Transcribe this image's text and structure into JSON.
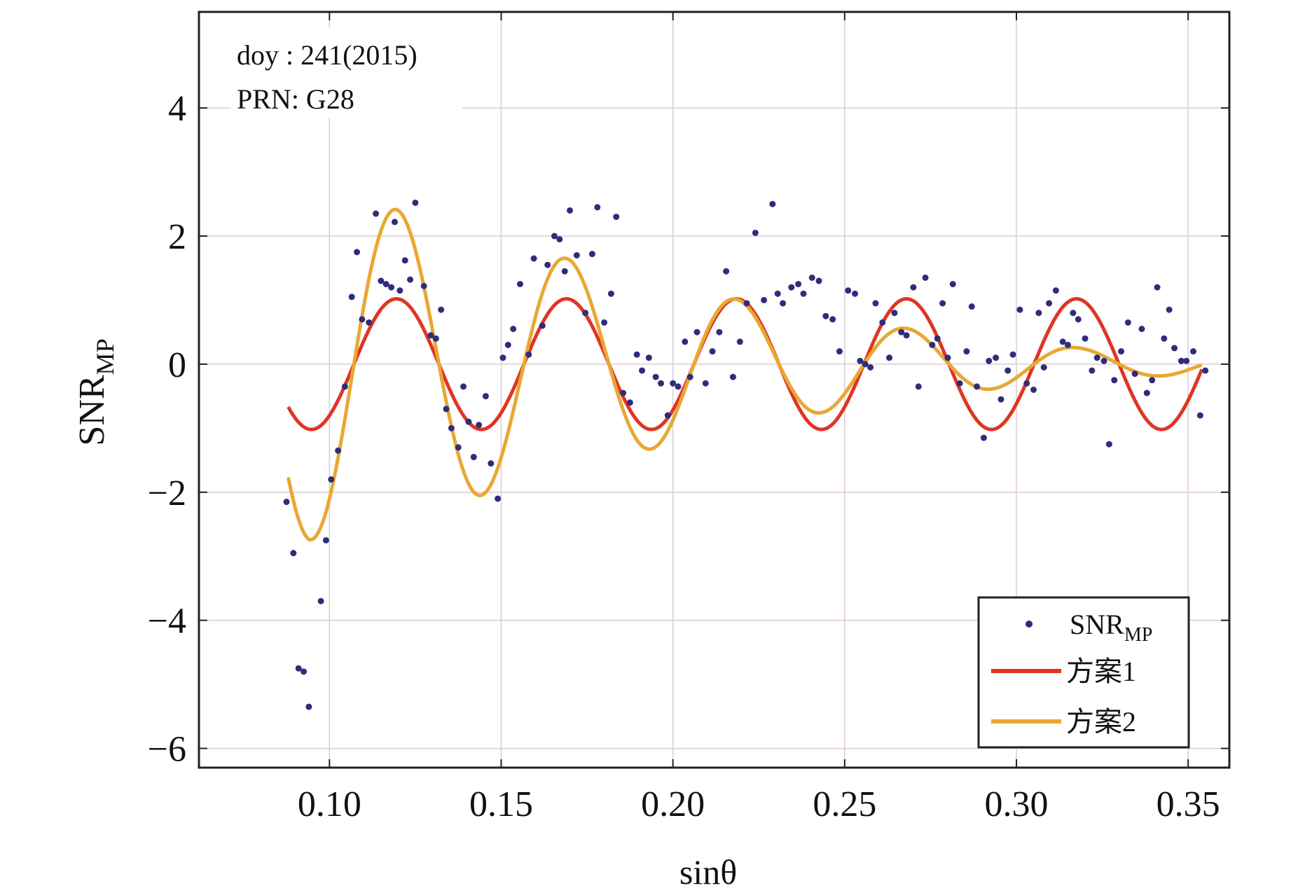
{
  "chart_data": {
    "type": "scatter",
    "title": "",
    "xlabel": "sinθ",
    "ylabel": {
      "main": "SNR",
      "sub": "MP"
    },
    "xlim": [
      0.062,
      0.362
    ],
    "ylim": [
      -6.3,
      5.5
    ],
    "xticks": [
      0.1,
      0.15,
      0.2,
      0.25,
      0.3,
      0.35
    ],
    "xtick_labels": [
      "0.10",
      "0.15",
      "0.20",
      "0.25",
      "0.30",
      "0.35"
    ],
    "yticks": [
      4,
      2,
      0,
      -2,
      -4,
      -6
    ],
    "ytick_labels": [
      "4",
      "2",
      "0",
      "−2",
      "−4",
      "−6"
    ],
    "grid": true,
    "annotations": [
      "doy : 241(2015)",
      "PRN: G28"
    ],
    "legend_position": "bottom-right",
    "legend": [
      {
        "label_main": "SNR",
        "label_sub": "MP",
        "kind": "dot",
        "color": "#2f2d7a"
      },
      {
        "label_main": "方案1",
        "label_sub": "",
        "kind": "line",
        "color": "#e03524"
      },
      {
        "label_main": "方案2",
        "label_sub": "",
        "kind": "line",
        "color": "#e8a833"
      }
    ],
    "colors": {
      "scatter": "#2f2d7a",
      "scheme1": "#e03524",
      "scheme2": "#e8a833",
      "grid": "#dbcbd3",
      "axis": "#222222"
    },
    "series": [
      {
        "name": "SNR_MP",
        "kind": "scatter",
        "points": [
          [
            0.0875,
            -2.15
          ],
          [
            0.0895,
            -2.95
          ],
          [
            0.091,
            -4.75
          ],
          [
            0.0925,
            -4.8
          ],
          [
            0.094,
            -5.35
          ],
          [
            0.0975,
            -3.7
          ],
          [
            0.099,
            -2.75
          ],
          [
            0.1005,
            -1.8
          ],
          [
            0.1025,
            -1.35
          ],
          [
            0.1045,
            -0.35
          ],
          [
            0.1065,
            1.05
          ],
          [
            0.108,
            1.75
          ],
          [
            0.1095,
            0.7
          ],
          [
            0.1115,
            0.65
          ],
          [
            0.1135,
            2.35
          ],
          [
            0.115,
            1.3
          ],
          [
            0.1165,
            1.25
          ],
          [
            0.118,
            1.2
          ],
          [
            0.119,
            2.22
          ],
          [
            0.1205,
            1.15
          ],
          [
            0.122,
            1.62
          ],
          [
            0.1235,
            1.32
          ],
          [
            0.125,
            2.52
          ],
          [
            0.1275,
            1.22
          ],
          [
            0.1295,
            0.45
          ],
          [
            0.131,
            0.4
          ],
          [
            0.1325,
            0.85
          ],
          [
            0.134,
            -0.7
          ],
          [
            0.1355,
            -1.0
          ],
          [
            0.1375,
            -1.3
          ],
          [
            0.139,
            -0.35
          ],
          [
            0.1405,
            -0.9
          ],
          [
            0.142,
            -1.45
          ],
          [
            0.1435,
            -0.95
          ],
          [
            0.1455,
            -0.5
          ],
          [
            0.147,
            -1.55
          ],
          [
            0.149,
            -2.1
          ],
          [
            0.1505,
            0.1
          ],
          [
            0.152,
            0.3
          ],
          [
            0.1535,
            0.55
          ],
          [
            0.1555,
            1.25
          ],
          [
            0.158,
            0.15
          ],
          [
            0.1595,
            1.65
          ],
          [
            0.162,
            0.6
          ],
          [
            0.1635,
            1.55
          ],
          [
            0.1655,
            2.0
          ],
          [
            0.167,
            1.95
          ],
          [
            0.1685,
            1.45
          ],
          [
            0.17,
            2.4
          ],
          [
            0.172,
            1.7
          ],
          [
            0.1745,
            0.8
          ],
          [
            0.1765,
            1.72
          ],
          [
            0.178,
            2.45
          ],
          [
            0.18,
            0.65
          ],
          [
            0.182,
            1.1
          ],
          [
            0.1835,
            2.3
          ],
          [
            0.1855,
            -0.45
          ],
          [
            0.1875,
            -0.6
          ],
          [
            0.1895,
            0.15
          ],
          [
            0.191,
            -0.1
          ],
          [
            0.193,
            0.1
          ],
          [
            0.195,
            -0.2
          ],
          [
            0.1965,
            -0.3
          ],
          [
            0.1985,
            -0.8
          ],
          [
            0.2,
            -0.3
          ],
          [
            0.2015,
            -0.35
          ],
          [
            0.2035,
            0.35
          ],
          [
            0.205,
            -0.2
          ],
          [
            0.207,
            0.5
          ],
          [
            0.2095,
            -0.3
          ],
          [
            0.2115,
            0.2
          ],
          [
            0.2135,
            0.5
          ],
          [
            0.2155,
            1.45
          ],
          [
            0.2175,
            -0.2
          ],
          [
            0.2195,
            0.35
          ],
          [
            0.2215,
            0.95
          ],
          [
            0.224,
            2.05
          ],
          [
            0.2265,
            1.0
          ],
          [
            0.229,
            2.5
          ],
          [
            0.2305,
            1.1
          ],
          [
            0.232,
            0.95
          ],
          [
            0.2345,
            1.2
          ],
          [
            0.2365,
            1.25
          ],
          [
            0.238,
            1.1
          ],
          [
            0.2405,
            1.35
          ],
          [
            0.2425,
            1.3
          ],
          [
            0.2445,
            0.75
          ],
          [
            0.2465,
            0.7
          ],
          [
            0.2485,
            0.2
          ],
          [
            0.251,
            1.15
          ],
          [
            0.253,
            1.1
          ],
          [
            0.2545,
            0.05
          ],
          [
            0.256,
            0.0
          ],
          [
            0.2575,
            -0.05
          ],
          [
            0.259,
            0.95
          ],
          [
            0.261,
            0.65
          ],
          [
            0.263,
            0.1
          ],
          [
            0.2645,
            0.8
          ],
          [
            0.2665,
            0.5
          ],
          [
            0.268,
            0.45
          ],
          [
            0.27,
            1.2
          ],
          [
            0.2715,
            -0.35
          ],
          [
            0.2735,
            1.35
          ],
          [
            0.2755,
            0.3
          ],
          [
            0.277,
            0.4
          ],
          [
            0.2785,
            0.95
          ],
          [
            0.28,
            0.1
          ],
          [
            0.2815,
            1.25
          ],
          [
            0.2835,
            -0.3
          ],
          [
            0.2855,
            0.2
          ],
          [
            0.287,
            0.9
          ],
          [
            0.2885,
            -0.35
          ],
          [
            0.2905,
            -1.15
          ],
          [
            0.292,
            0.05
          ],
          [
            0.294,
            0.1
          ],
          [
            0.2955,
            -0.55
          ],
          [
            0.2975,
            -0.1
          ],
          [
            0.299,
            0.15
          ],
          [
            0.301,
            0.85
          ],
          [
            0.303,
            -0.3
          ],
          [
            0.305,
            -0.4
          ],
          [
            0.3065,
            0.8
          ],
          [
            0.308,
            -0.05
          ],
          [
            0.3095,
            0.95
          ],
          [
            0.3115,
            1.15
          ],
          [
            0.3135,
            0.35
          ],
          [
            0.315,
            0.3
          ],
          [
            0.3165,
            0.8
          ],
          [
            0.318,
            0.7
          ],
          [
            0.32,
            0.4
          ],
          [
            0.322,
            -0.1
          ],
          [
            0.3235,
            0.1
          ],
          [
            0.3255,
            0.05
          ],
          [
            0.327,
            -1.25
          ],
          [
            0.3285,
            -0.25
          ],
          [
            0.3305,
            0.2
          ],
          [
            0.3325,
            0.65
          ],
          [
            0.3345,
            -0.15
          ],
          [
            0.3365,
            0.55
          ],
          [
            0.338,
            -0.45
          ],
          [
            0.3395,
            -0.25
          ],
          [
            0.341,
            1.2
          ],
          [
            0.343,
            0.4
          ],
          [
            0.3445,
            0.85
          ],
          [
            0.346,
            0.25
          ],
          [
            0.348,
            0.05
          ],
          [
            0.3495,
            0.05
          ],
          [
            0.3515,
            0.2
          ],
          [
            0.3535,
            -0.8
          ],
          [
            0.355,
            -0.1
          ]
        ]
      },
      {
        "name": "方案1",
        "kind": "line",
        "model": {
          "amplitude": 1.02,
          "period": 0.0495,
          "peak_x": 0.1195,
          "x_start": 0.088,
          "x_end": 0.354
        }
      },
      {
        "name": "方案2",
        "kind": "line",
        "model": {
          "period": 0.0495,
          "peak_x": 0.1195,
          "x_start": 0.088,
          "x_end": 0.354,
          "envelope_x": [
            0.088,
            0.094,
            0.106,
            0.119,
            0.144,
            0.169,
            0.194,
            0.2195,
            0.244,
            0.269,
            0.294,
            0.319,
            0.354
          ],
          "envelope_a": [
            2.7,
            2.75,
            2.6,
            2.42,
            2.05,
            1.65,
            1.32,
            1.0,
            0.75,
            0.55,
            0.38,
            0.25,
            0.15
          ]
        }
      }
    ]
  }
}
